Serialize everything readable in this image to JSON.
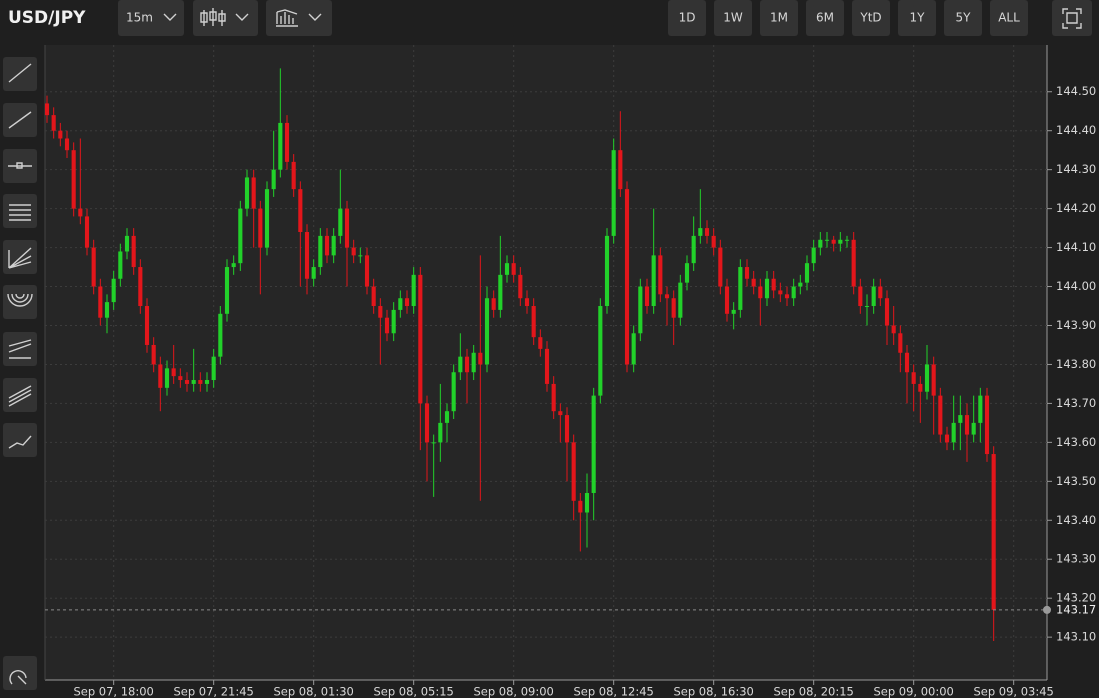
{
  "symbol": "USD/JPY",
  "interval": "15m",
  "ranges": [
    "1D",
    "1W",
    "1M",
    "6M",
    "YtD",
    "1Y",
    "5Y",
    "ALL"
  ],
  "chart_data": {
    "type": "candlestick",
    "up_color": "#22d12a",
    "down_color": "#e3161b",
    "grid": true,
    "xlim": [
      -0.3,
      150
    ],
    "ylim": [
      142.99,
      144.62
    ],
    "xticks": [
      {
        "value": 10,
        "label": "Sep 07, 18:00"
      },
      {
        "value": 25,
        "label": "Sep 07, 21:45"
      },
      {
        "value": 40,
        "label": "Sep 08, 01:30"
      },
      {
        "value": 55,
        "label": "Sep 08, 05:15"
      },
      {
        "value": 70,
        "label": "Sep 08, 09:00"
      },
      {
        "value": 85,
        "label": "Sep 08, 12:45"
      },
      {
        "value": 100,
        "label": "Sep 08, 16:30"
      },
      {
        "value": 115,
        "label": "Sep 08, 20:15"
      },
      {
        "value": 130,
        "label": "Sep 09, 00:00"
      },
      {
        "value": 145,
        "label": "Sep 09, 03:45"
      }
    ],
    "yticks": [
      {
        "value": 143.1,
        "label": "143.10"
      },
      {
        "value": 143.2,
        "label": "143.20"
      },
      {
        "value": 143.3,
        "label": "143.30"
      },
      {
        "value": 143.4,
        "label": "143.40"
      },
      {
        "value": 143.5,
        "label": "143.50"
      },
      {
        "value": 143.6,
        "label": "143.60"
      },
      {
        "value": 143.7,
        "label": "143.70"
      },
      {
        "value": 143.8,
        "label": "143.80"
      },
      {
        "value": 143.9,
        "label": "143.90"
      },
      {
        "value": 144.0,
        "label": "144.00"
      },
      {
        "value": 144.1,
        "label": "144.10"
      },
      {
        "value": 144.2,
        "label": "144.20"
      },
      {
        "value": 144.3,
        "label": "144.30"
      },
      {
        "value": 144.4,
        "label": "144.40"
      },
      {
        "value": 144.5,
        "label": "144.50"
      }
    ],
    "open": [
      144.47,
      144.44,
      144.4,
      144.38,
      144.35,
      144.2,
      144.18,
      144.1,
      144.0,
      143.92,
      143.96,
      144.02,
      144.09,
      144.13,
      144.05,
      143.95,
      143.85,
      143.8,
      143.74,
      143.79,
      143.77,
      143.76,
      143.75,
      143.76,
      143.75,
      143.76,
      143.82,
      143.93,
      144.05,
      144.06,
      144.2,
      144.28,
      144.2,
      144.1,
      144.25,
      144.3,
      144.42,
      144.32,
      144.25,
      144.14,
      144.02,
      144.05,
      144.13,
      144.08,
      144.13,
      144.2,
      144.1,
      144.08,
      144.08,
      144.0,
      143.95,
      143.92,
      143.88,
      143.94,
      143.97,
      143.95,
      144.03,
      143.7,
      143.6,
      143.6,
      143.65,
      143.68,
      143.78,
      143.82,
      143.78,
      143.83,
      143.8,
      143.97,
      143.94,
      144.03,
      144.06,
      144.03,
      143.97,
      143.95,
      143.87,
      143.84,
      143.75,
      143.68,
      143.67,
      143.6,
      143.45,
      143.42,
      143.47,
      143.72,
      143.95,
      144.13,
      144.35,
      144.25,
      143.8,
      143.88,
      144.0,
      143.95,
      144.08,
      143.98,
      143.97,
      143.92,
      144.01,
      144.06,
      144.13,
      144.15,
      144.13,
      144.1,
      144.0,
      143.93,
      143.94,
      144.05,
      144.02,
      144.0,
      143.97,
      144.02,
      143.99,
      143.98,
      143.97,
      144.0,
      144.01,
      144.06,
      144.1,
      144.12,
      144.12,
      144.11,
      144.12,
      144.12,
      144.0,
      143.95,
      143.95,
      144.0,
      143.97,
      143.9,
      143.88,
      143.83,
      143.78,
      143.75,
      143.73,
      143.8,
      143.72,
      143.62,
      143.6,
      143.65,
      143.67,
      143.62,
      143.65,
      143.72,
      143.57
    ],
    "high": [
      144.49,
      144.46,
      144.42,
      144.4,
      144.37,
      144.38,
      144.2,
      144.12,
      144.02,
      143.98,
      144.04,
      144.11,
      144.15,
      144.15,
      144.07,
      143.97,
      143.87,
      143.82,
      143.81,
      143.85,
      143.79,
      143.78,
      143.84,
      143.78,
      143.78,
      143.84,
      143.95,
      144.07,
      144.08,
      144.22,
      144.3,
      144.3,
      144.22,
      144.27,
      144.4,
      144.56,
      144.44,
      144.34,
      144.27,
      144.16,
      144.07,
      144.15,
      144.15,
      144.15,
      144.3,
      144.22,
      144.12,
      144.1,
      144.1,
      144.02,
      143.97,
      143.94,
      143.96,
      143.99,
      143.99,
      144.05,
      144.05,
      143.72,
      143.62,
      143.75,
      143.7,
      143.8,
      143.88,
      143.84,
      143.85,
      144.08,
      144.0,
      143.99,
      144.13,
      144.08,
      144.08,
      144.05,
      143.99,
      143.97,
      143.89,
      143.86,
      143.77,
      143.7,
      143.69,
      143.62,
      143.47,
      143.52,
      143.74,
      143.97,
      144.15,
      144.38,
      144.45,
      144.27,
      143.9,
      144.02,
      144.02,
      144.2,
      144.1,
      144.0,
      143.99,
      144.03,
      144.08,
      144.18,
      144.25,
      144.17,
      144.15,
      144.12,
      144.02,
      143.96,
      144.07,
      144.07,
      144.04,
      144.02,
      144.04,
      144.04,
      144.01,
      144.0,
      144.02,
      144.03,
      144.08,
      144.12,
      144.14,
      144.14,
      144.13,
      144.14,
      144.13,
      144.14,
      144.02,
      143.98,
      144.02,
      144.02,
      143.99,
      143.95,
      143.9,
      143.85,
      143.8,
      143.77,
      143.85,
      143.82,
      143.74,
      143.64,
      143.72,
      143.72,
      143.7,
      143.72,
      143.74,
      143.74,
      143.59
    ],
    "low": [
      144.42,
      144.38,
      144.36,
      144.33,
      144.18,
      144.16,
      144.08,
      143.98,
      143.9,
      143.88,
      143.94,
      144.0,
      144.07,
      144.03,
      143.93,
      143.83,
      143.78,
      143.68,
      143.72,
      143.75,
      143.74,
      143.73,
      143.73,
      143.73,
      143.73,
      143.74,
      143.8,
      143.91,
      144.03,
      144.04,
      144.18,
      144.1,
      143.98,
      144.08,
      144.23,
      144.28,
      144.3,
      144.23,
      144.0,
      143.98,
      144.0,
      144.03,
      144.06,
      144.06,
      144.11,
      144.0,
      144.06,
      144.06,
      143.98,
      143.93,
      143.8,
      143.86,
      143.86,
      143.92,
      143.93,
      143.93,
      143.58,
      143.5,
      143.46,
      143.55,
      143.6,
      143.66,
      143.76,
      143.7,
      143.76,
      143.45,
      143.78,
      143.92,
      143.92,
      144.01,
      144.01,
      143.95,
      143.93,
      143.85,
      143.82,
      143.73,
      143.66,
      143.6,
      143.5,
      143.4,
      143.32,
      143.33,
      143.4,
      143.7,
      143.93,
      144.11,
      144.23,
      143.78,
      143.78,
      143.86,
      143.93,
      143.93,
      143.96,
      143.9,
      143.85,
      143.9,
      143.99,
      144.04,
      144.11,
      144.11,
      144.08,
      143.98,
      143.91,
      143.89,
      143.92,
      144.0,
      143.98,
      143.9,
      143.95,
      143.97,
      143.96,
      143.95,
      143.95,
      143.98,
      143.99,
      144.04,
      144.08,
      144.1,
      144.09,
      144.09,
      144.1,
      143.98,
      143.93,
      143.9,
      143.93,
      143.95,
      143.85,
      143.85,
      143.78,
      143.7,
      143.68,
      143.65,
      143.71,
      143.62,
      143.6,
      143.58,
      143.58,
      143.58,
      143.55,
      143.6,
      143.6,
      143.55,
      143.09
    ],
    "close": [
      144.44,
      144.4,
      144.38,
      144.35,
      144.2,
      144.18,
      144.1,
      144.0,
      143.92,
      143.96,
      144.02,
      144.09,
      144.13,
      144.05,
      143.95,
      143.85,
      143.8,
      143.74,
      143.79,
      143.77,
      143.76,
      143.75,
      143.76,
      143.75,
      143.76,
      143.82,
      143.93,
      144.05,
      144.06,
      144.2,
      144.28,
      144.2,
      144.1,
      144.25,
      144.3,
      144.42,
      144.32,
      144.25,
      144.14,
      144.02,
      144.05,
      144.13,
      144.08,
      144.13,
      144.2,
      144.1,
      144.08,
      144.08,
      144.0,
      143.95,
      143.92,
      143.88,
      143.94,
      143.97,
      143.95,
      144.03,
      143.7,
      143.6,
      143.6,
      143.65,
      143.68,
      143.78,
      143.82,
      143.78,
      143.83,
      143.8,
      143.97,
      143.94,
      144.03,
      144.06,
      144.03,
      143.97,
      143.95,
      143.87,
      143.84,
      143.75,
      143.68,
      143.67,
      143.6,
      143.45,
      143.42,
      143.47,
      143.72,
      143.95,
      144.13,
      144.35,
      144.25,
      143.8,
      143.88,
      144.0,
      143.95,
      144.08,
      143.98,
      143.97,
      143.92,
      144.01,
      144.06,
      144.13,
      144.15,
      144.13,
      144.1,
      144.0,
      143.93,
      143.94,
      144.05,
      144.02,
      144.0,
      143.97,
      144.02,
      143.99,
      143.98,
      143.97,
      144.0,
      144.01,
      144.06,
      144.1,
      144.12,
      144.12,
      144.11,
      144.12,
      144.12,
      144.0,
      143.95,
      143.95,
      144.0,
      143.97,
      143.9,
      143.88,
      143.83,
      143.78,
      143.75,
      143.73,
      143.8,
      143.72,
      143.62,
      143.6,
      143.65,
      143.67,
      143.62,
      143.65,
      143.72,
      143.57,
      143.17
    ]
  }
}
